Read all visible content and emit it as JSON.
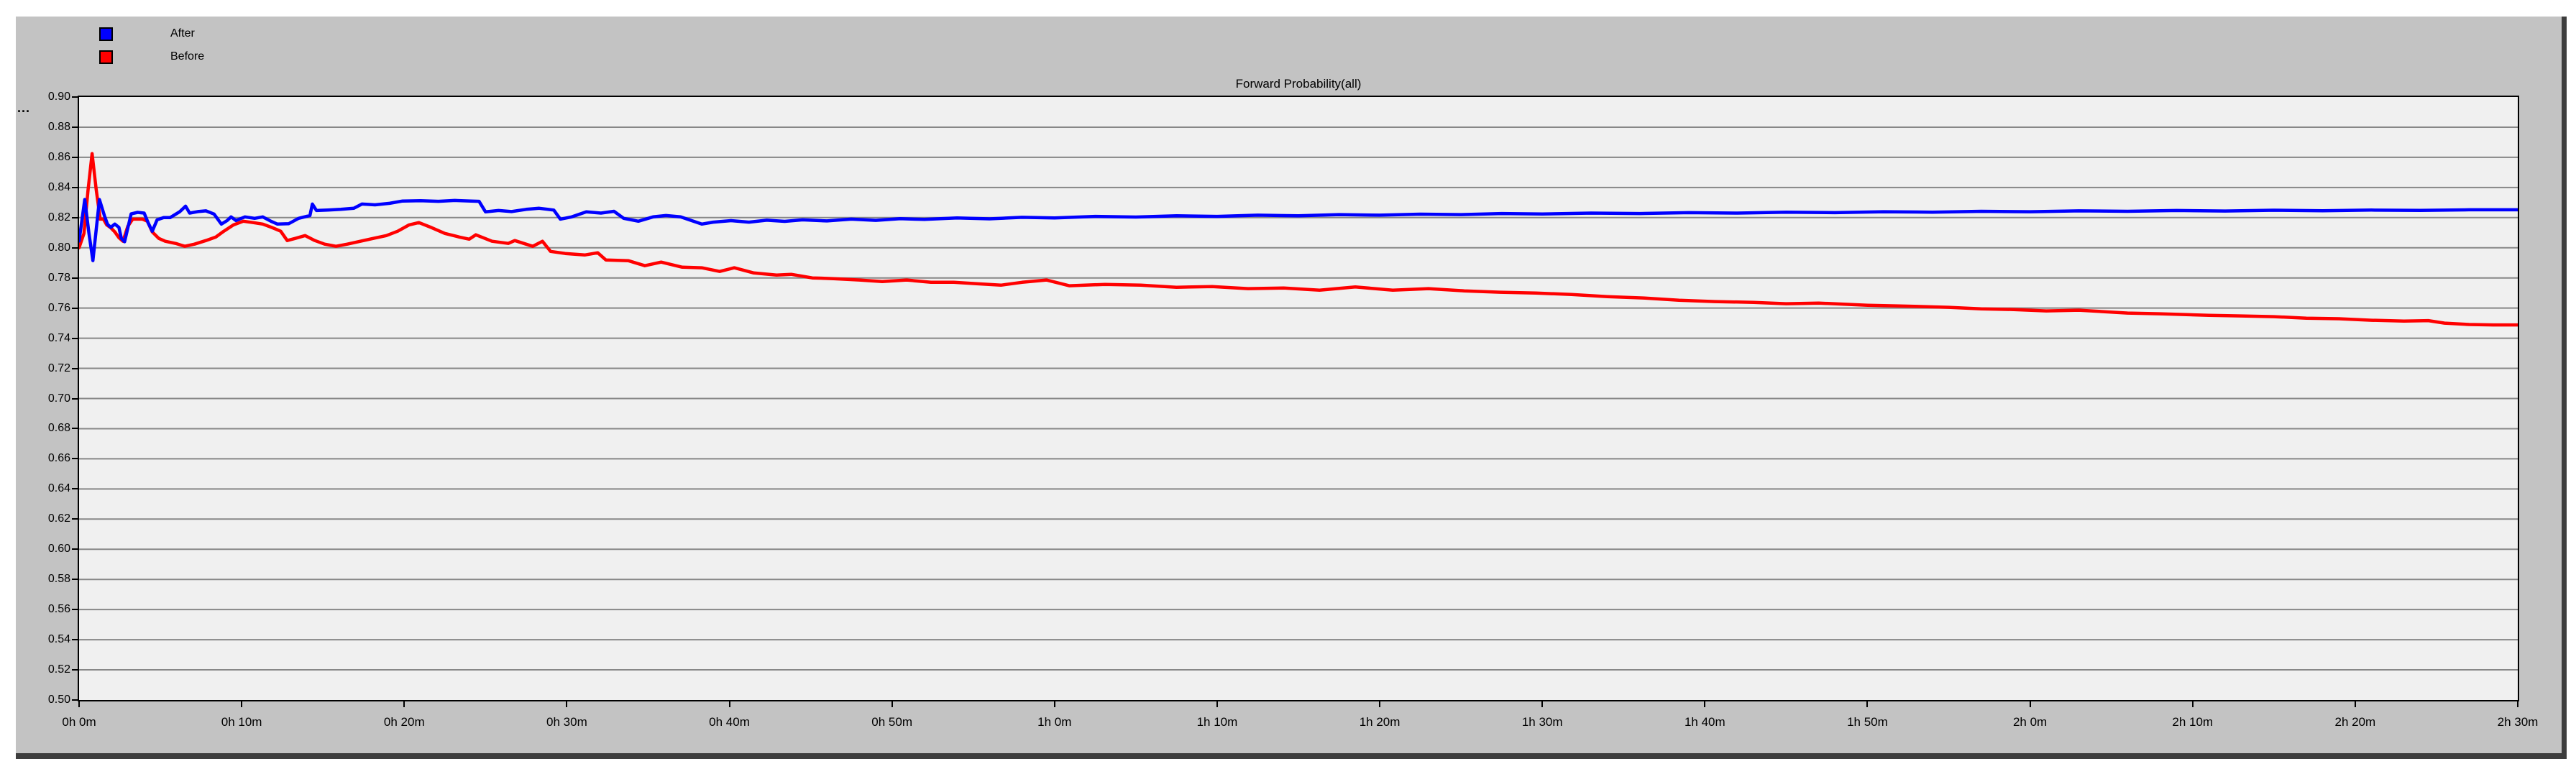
{
  "title": "Forward Probability(all)",
  "y_axis_overflow": "...",
  "colors": {
    "page_background": "#ffffff",
    "panel_background": "#c3c3c3",
    "panel_shadow": "#3d3d3d",
    "plot_background": "#f0f0f0",
    "gridline": "#878787",
    "axis": "#000000",
    "after_line": "#0000ff",
    "before_line": "#ff0000"
  },
  "legend": {
    "items": [
      {
        "label": "After",
        "color": "#0000ff"
      },
      {
        "label": "Before",
        "color": "#ff0000"
      }
    ]
  },
  "chart_data": {
    "type": "line",
    "title": "Forward Probability(all)",
    "x_unit": "minutes",
    "xlim": [
      0,
      150
    ],
    "ylim": [
      0.5,
      0.9
    ],
    "grid": true,
    "legend_position": "top-left",
    "y_ticks": [
      0.9,
      0.88,
      0.86,
      0.84,
      0.82,
      0.8,
      0.78,
      0.76,
      0.74,
      0.72,
      0.7,
      0.68,
      0.66,
      0.64,
      0.62,
      0.6,
      0.58,
      0.56,
      0.54,
      0.52,
      0.5
    ],
    "y_tick_labels": [
      "0.90",
      "0.88",
      "0.86",
      "0.84",
      "0.82",
      "0.80",
      "0.78",
      "0.76",
      "0.74",
      "0.72",
      "0.70",
      "0.68",
      "0.66",
      "0.64",
      "0.62",
      "0.60",
      "0.58",
      "0.56",
      "0.54",
      "0.52",
      "0.50"
    ],
    "x_ticks_minutes": [
      0,
      10,
      20,
      30,
      40,
      50,
      60,
      70,
      80,
      90,
      100,
      110,
      120,
      130,
      140,
      150
    ],
    "x_tick_labels": [
      "0h 0m",
      "0h 10m",
      "0h 20m",
      "0h 30m",
      "0h 40m",
      "0h 50m",
      "1h 0m",
      "1h 10m",
      "1h 20m",
      "1h 30m",
      "1h 40m",
      "1h 50m",
      "2h 0m",
      "2h 10m",
      "2h 20m",
      "2h 30m"
    ],
    "series": [
      {
        "name": "Before",
        "color": "#ff0000",
        "points": [
          [
            0,
            0.8
          ],
          [
            0.3,
            0.8095
          ],
          [
            0.55,
            0.838
          ],
          [
            0.8,
            0.8625
          ],
          [
            1.05,
            0.839
          ],
          [
            1.3,
            0.819
          ],
          [
            1.5,
            0.819
          ],
          [
            1.7,
            0.8152
          ],
          [
            1.95,
            0.8133
          ],
          [
            2.2,
            0.8105
          ],
          [
            2.45,
            0.8067
          ],
          [
            2.7,
            0.8043
          ],
          [
            3.0,
            0.8143
          ],
          [
            3.3,
            0.819
          ],
          [
            3.9,
            0.819
          ],
          [
            4.2,
            0.8176
          ],
          [
            4.5,
            0.8105
          ],
          [
            4.9,
            0.8062
          ],
          [
            5.3,
            0.8043
          ],
          [
            6.0,
            0.8027
          ],
          [
            6.5,
            0.801
          ],
          [
            7.1,
            0.8024
          ],
          [
            7.8,
            0.8048
          ],
          [
            8.4,
            0.8071
          ],
          [
            8.9,
            0.811
          ],
          [
            9.5,
            0.8152
          ],
          [
            10.1,
            0.8176
          ],
          [
            10.7,
            0.8167
          ],
          [
            11.3,
            0.8157
          ],
          [
            11.9,
            0.8133
          ],
          [
            12.4,
            0.811
          ],
          [
            12.8,
            0.8048
          ],
          [
            13.3,
            0.8062
          ],
          [
            13.9,
            0.8081
          ],
          [
            14.5,
            0.8048
          ],
          [
            15.1,
            0.8024
          ],
          [
            15.8,
            0.801
          ],
          [
            16.5,
            0.8024
          ],
          [
            17.3,
            0.8043
          ],
          [
            18.1,
            0.8062
          ],
          [
            18.9,
            0.8081
          ],
          [
            19.6,
            0.811
          ],
          [
            20.3,
            0.8152
          ],
          [
            20.9,
            0.8167
          ],
          [
            21.7,
            0.8133
          ],
          [
            22.5,
            0.8095
          ],
          [
            23.4,
            0.8071
          ],
          [
            24.0,
            0.8057
          ],
          [
            24.4,
            0.8086
          ],
          [
            25.4,
            0.8043
          ],
          [
            26.4,
            0.8029
          ],
          [
            26.8,
            0.8048
          ],
          [
            27.9,
            0.801
          ],
          [
            28.5,
            0.8043
          ],
          [
            29.0,
            0.7976
          ],
          [
            29.9,
            0.7962
          ],
          [
            31.1,
            0.7952
          ],
          [
            31.9,
            0.7967
          ],
          [
            32.4,
            0.7919
          ],
          [
            33.8,
            0.7914
          ],
          [
            34.8,
            0.7881
          ],
          [
            35.8,
            0.7905
          ],
          [
            37.1,
            0.7871
          ],
          [
            38.3,
            0.7867
          ],
          [
            39.4,
            0.7843
          ],
          [
            40.3,
            0.7867
          ],
          [
            41.5,
            0.7833
          ],
          [
            42.9,
            0.7819
          ],
          [
            43.8,
            0.7824
          ],
          [
            45.1,
            0.78
          ],
          [
            46.4,
            0.7795
          ],
          [
            48.0,
            0.7786
          ],
          [
            49.4,
            0.7776
          ],
          [
            50.9,
            0.7786
          ],
          [
            52.4,
            0.7771
          ],
          [
            53.8,
            0.7771
          ],
          [
            55.2,
            0.7762
          ],
          [
            56.7,
            0.7752
          ],
          [
            58.0,
            0.7771
          ],
          [
            59.5,
            0.7786
          ],
          [
            60.9,
            0.7748
          ],
          [
            63.1,
            0.7757
          ],
          [
            65.3,
            0.7752
          ],
          [
            67.5,
            0.7738
          ],
          [
            69.7,
            0.7743
          ],
          [
            71.9,
            0.7729
          ],
          [
            74.1,
            0.7733
          ],
          [
            76.3,
            0.7719
          ],
          [
            78.5,
            0.774
          ],
          [
            80.8,
            0.7719
          ],
          [
            83.0,
            0.7729
          ],
          [
            85.2,
            0.7714
          ],
          [
            87.4,
            0.7705
          ],
          [
            89.6,
            0.77
          ],
          [
            91.8,
            0.769
          ],
          [
            94.0,
            0.7676
          ],
          [
            96.2,
            0.7667
          ],
          [
            98.4,
            0.7652
          ],
          [
            100.6,
            0.7643
          ],
          [
            103,
            0.7638
          ],
          [
            105,
            0.7629
          ],
          [
            107,
            0.7633
          ],
          [
            110,
            0.7619
          ],
          [
            112,
            0.7614
          ],
          [
            115,
            0.7605
          ],
          [
            117,
            0.7595
          ],
          [
            119,
            0.759
          ],
          [
            121,
            0.7581
          ],
          [
            123,
            0.7586
          ],
          [
            126,
            0.7567
          ],
          [
            128,
            0.7562
          ],
          [
            131,
            0.7552
          ],
          [
            133,
            0.7548
          ],
          [
            135,
            0.7543
          ],
          [
            137,
            0.7533
          ],
          [
            139,
            0.7529
          ],
          [
            141,
            0.7519
          ],
          [
            143,
            0.7514
          ],
          [
            144.5,
            0.7517
          ],
          [
            145.5,
            0.75
          ],
          [
            147,
            0.7491
          ],
          [
            148.5,
            0.7488
          ],
          [
            150,
            0.7488
          ]
        ]
      },
      {
        "name": "After",
        "color": "#0000ff",
        "points": [
          [
            0,
            0.8045
          ],
          [
            0.35,
            0.832
          ],
          [
            0.6,
            0.81
          ],
          [
            0.85,
            0.7915
          ],
          [
            1.25,
            0.832
          ],
          [
            1.55,
            0.8215
          ],
          [
            1.75,
            0.8155
          ],
          [
            1.95,
            0.8135
          ],
          [
            2.2,
            0.8157
          ],
          [
            2.45,
            0.8135
          ],
          [
            2.6,
            0.8062
          ],
          [
            2.8,
            0.804
          ],
          [
            3.2,
            0.8225
          ],
          [
            3.6,
            0.8235
          ],
          [
            4.0,
            0.823
          ],
          [
            4.25,
            0.8165
          ],
          [
            4.5,
            0.811
          ],
          [
            4.8,
            0.8185
          ],
          [
            5.2,
            0.82
          ],
          [
            5.6,
            0.82
          ],
          [
            6.2,
            0.824
          ],
          [
            6.55,
            0.8276
          ],
          [
            6.8,
            0.823
          ],
          [
            7.3,
            0.824
          ],
          [
            7.8,
            0.8245
          ],
          [
            8.3,
            0.8224
          ],
          [
            8.75,
            0.8157
          ],
          [
            9.1,
            0.818
          ],
          [
            9.35,
            0.8205
          ],
          [
            9.65,
            0.8181
          ],
          [
            10.2,
            0.8205
          ],
          [
            10.8,
            0.8195
          ],
          [
            11.3,
            0.8205
          ],
          [
            11.8,
            0.8176
          ],
          [
            12.2,
            0.8157
          ],
          [
            12.9,
            0.816
          ],
          [
            13.5,
            0.8195
          ],
          [
            14.2,
            0.8214
          ],
          [
            14.35,
            0.829
          ],
          [
            14.6,
            0.8247
          ],
          [
            15.3,
            0.825
          ],
          [
            16.1,
            0.8255
          ],
          [
            16.9,
            0.8262
          ],
          [
            17.4,
            0.829
          ],
          [
            18.2,
            0.8285
          ],
          [
            19.1,
            0.8295
          ],
          [
            19.9,
            0.831
          ],
          [
            21.0,
            0.8312
          ],
          [
            22.1,
            0.8308
          ],
          [
            23.1,
            0.8314
          ],
          [
            24.1,
            0.831
          ],
          [
            24.6,
            0.8308
          ],
          [
            25.0,
            0.8238
          ],
          [
            25.8,
            0.8247
          ],
          [
            26.6,
            0.824
          ],
          [
            27.5,
            0.8255
          ],
          [
            28.3,
            0.8262
          ],
          [
            29.2,
            0.825
          ],
          [
            29.6,
            0.819
          ],
          [
            30.3,
            0.8205
          ],
          [
            31.2,
            0.8238
          ],
          [
            32.1,
            0.823
          ],
          [
            32.9,
            0.8242
          ],
          [
            33.5,
            0.8195
          ],
          [
            34.4,
            0.8176
          ],
          [
            35.3,
            0.8205
          ],
          [
            36.1,
            0.8214
          ],
          [
            37.0,
            0.8205
          ],
          [
            38.3,
            0.8157
          ],
          [
            39.0,
            0.817
          ],
          [
            40.1,
            0.818
          ],
          [
            41.2,
            0.817
          ],
          [
            42.3,
            0.8183
          ],
          [
            43.4,
            0.8175
          ],
          [
            44.5,
            0.8185
          ],
          [
            46.0,
            0.8178
          ],
          [
            47.5,
            0.819
          ],
          [
            49.0,
            0.8182
          ],
          [
            50.5,
            0.8193
          ],
          [
            52.0,
            0.8188
          ],
          [
            54.0,
            0.8198
          ],
          [
            56.0,
            0.8192
          ],
          [
            58.0,
            0.8202
          ],
          [
            60.0,
            0.8198
          ],
          [
            62.5,
            0.8208
          ],
          [
            65.0,
            0.8204
          ],
          [
            67.5,
            0.8212
          ],
          [
            70.0,
            0.8208
          ],
          [
            72.5,
            0.8216
          ],
          [
            75.0,
            0.8212
          ],
          [
            77.5,
            0.822
          ],
          [
            80.0,
            0.8216
          ],
          [
            82.5,
            0.8223
          ],
          [
            85.0,
            0.822
          ],
          [
            87.5,
            0.8227
          ],
          [
            90.0,
            0.8224
          ],
          [
            93.0,
            0.823
          ],
          [
            96.0,
            0.8227
          ],
          [
            99.0,
            0.8233
          ],
          [
            102,
            0.823
          ],
          [
            105,
            0.8236
          ],
          [
            108,
            0.8233
          ],
          [
            111,
            0.8239
          ],
          [
            114,
            0.8236
          ],
          [
            117,
            0.8242
          ],
          [
            120,
            0.8239
          ],
          [
            123,
            0.8245
          ],
          [
            126,
            0.8242
          ],
          [
            129,
            0.8247
          ],
          [
            132,
            0.8244
          ],
          [
            135,
            0.8249
          ],
          [
            138,
            0.8246
          ],
          [
            141,
            0.825
          ],
          [
            144,
            0.8248
          ],
          [
            147,
            0.8252
          ],
          [
            150,
            0.8252
          ]
        ]
      }
    ]
  }
}
